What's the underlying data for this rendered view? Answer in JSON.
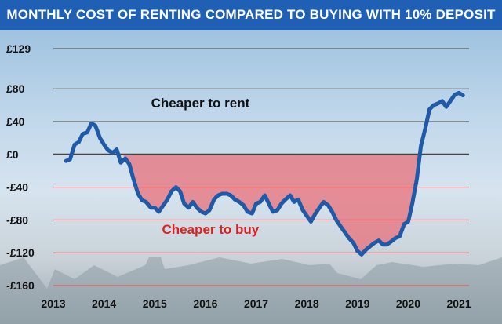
{
  "title": "MONTHLY COST OF RENTING COMPARED TO BUYING WITH 10% DEPOSIT",
  "colors": {
    "title_bg": "#1f5fb4",
    "line": "#1e5aa8",
    "fill_buy": "#e8707a",
    "grid_positive": "#444444",
    "grid_negative": "#e04a4a",
    "label_buy": "#e02020"
  },
  "chart_data": {
    "type": "line",
    "title": "MONTHLY COST OF RENTING COMPARED TO BUYING WITH 10% DEPOSIT",
    "xlabel": "",
    "ylabel": "",
    "ylim": [
      -160,
      129
    ],
    "xlim": [
      2013.0,
      2021.2
    ],
    "y_ticks": [
      {
        "value": 129,
        "label": "£129"
      },
      {
        "value": 80,
        "label": "£80"
      },
      {
        "value": 40,
        "label": "£40"
      },
      {
        "value": 0,
        "label": "£0"
      },
      {
        "value": -40,
        "label": "-£40"
      },
      {
        "value": -80,
        "label": "-£80"
      },
      {
        "value": -120,
        "label": "-£120"
      },
      {
        "value": -160,
        "label": "-£160"
      }
    ],
    "x_ticks": [
      "2013",
      "2014",
      "2015",
      "2016",
      "2017",
      "2018",
      "2019",
      "2020",
      "2021"
    ],
    "annotations": [
      {
        "text": "Cheaper to rent",
        "x": 2015.9,
        "y": 57
      },
      {
        "text": "Cheaper to buy",
        "x": 2016.1,
        "y": -97
      }
    ],
    "grid": true,
    "series": [
      {
        "x": [
          2013.25,
          2013.33,
          2013.42,
          2013.5,
          2013.58,
          2013.67,
          2013.75,
          2013.83,
          2013.92,
          2014.0,
          2014.08,
          2014.17,
          2014.25,
          2014.33,
          2014.42,
          2014.5,
          2014.58,
          2014.67,
          2014.75,
          2014.83,
          2014.92,
          2015.0,
          2015.08,
          2015.17,
          2015.25,
          2015.33,
          2015.42,
          2015.5,
          2015.58,
          2015.67,
          2015.75,
          2015.83,
          2015.92,
          2016.0,
          2016.08,
          2016.17,
          2016.25,
          2016.33,
          2016.42,
          2016.5,
          2016.58,
          2016.67,
          2016.75,
          2016.83,
          2016.92,
          2017.0,
          2017.08,
          2017.17,
          2017.25,
          2017.33,
          2017.42,
          2017.5,
          2017.58,
          2017.67,
          2017.75,
          2017.83,
          2017.92,
          2018.0,
          2018.08,
          2018.17,
          2018.25,
          2018.33,
          2018.42,
          2018.5,
          2018.58,
          2018.67,
          2018.75,
          2018.83,
          2018.92,
          2019.0,
          2019.08,
          2019.17,
          2019.25,
          2019.33,
          2019.42,
          2019.5,
          2019.58,
          2019.67,
          2019.75,
          2019.83,
          2019.92,
          2020.0,
          2020.08,
          2020.17,
          2020.25,
          2020.33,
          2020.42,
          2020.5,
          2020.58,
          2020.67,
          2020.75,
          2020.83,
          2020.92,
          2021.0,
          2021.08
        ],
        "values": [
          -8,
          -6,
          12,
          15,
          25,
          27,
          38,
          35,
          20,
          12,
          5,
          2,
          6,
          -10,
          -5,
          -12,
          -30,
          -48,
          -56,
          -58,
          -65,
          -65,
          -70,
          -62,
          -55,
          -45,
          -40,
          -45,
          -60,
          -65,
          -58,
          -65,
          -70,
          -72,
          -68,
          -55,
          -50,
          -48,
          -48,
          -50,
          -55,
          -58,
          -62,
          -70,
          -72,
          -60,
          -58,
          -50,
          -60,
          -70,
          -68,
          -60,
          -55,
          -50,
          -58,
          -55,
          -68,
          -75,
          -82,
          -72,
          -65,
          -58,
          -62,
          -70,
          -80,
          -88,
          -95,
          -102,
          -108,
          -118,
          -122,
          -116,
          -112,
          -108,
          -105,
          -110,
          -110,
          -106,
          -102,
          -100,
          -85,
          -82,
          -60,
          -30,
          10,
          30,
          55,
          60,
          62,
          65,
          58,
          65,
          73,
          75,
          72
        ]
      }
    ]
  }
}
